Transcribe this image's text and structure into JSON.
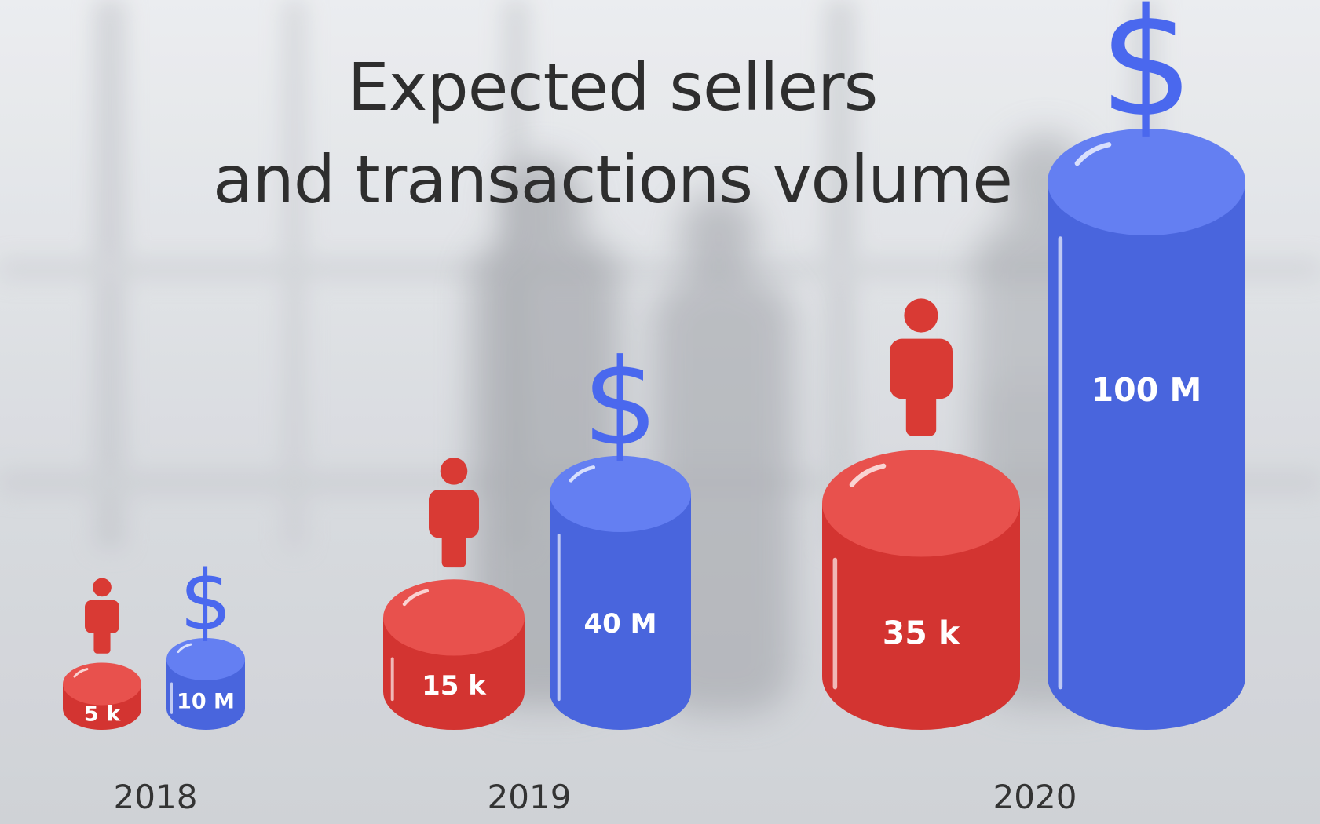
{
  "title": {
    "line1": "Expected sellers",
    "line2": "and transactions volume"
  },
  "chart_data": {
    "type": "bar",
    "style": "3d-cylinder",
    "categories": [
      "2018",
      "2019",
      "2020"
    ],
    "series": [
      {
        "key": "sellers",
        "icon": "person-icon",
        "color": "#e53935",
        "values": [
          5,
          15,
          35
        ],
        "labels": [
          "5 k",
          "15 k",
          "35 k"
        ]
      },
      {
        "key": "transactions",
        "icon": "dollar-icon",
        "color": "#4f6ef0",
        "values": [
          10,
          40,
          100
        ],
        "labels": [
          "10 M",
          "40 M",
          "100 M"
        ]
      }
    ],
    "icon_glyphs": {
      "dollar-icon": "$"
    }
  }
}
